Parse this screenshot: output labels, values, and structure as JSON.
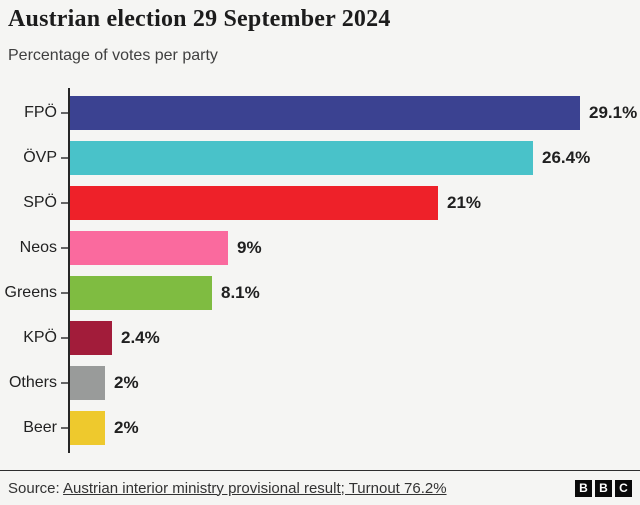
{
  "header": {
    "title": "Austrian election 29 September 2024",
    "subtitle": "Percentage of votes per party"
  },
  "chart_data": {
    "type": "bar",
    "orientation": "horizontal",
    "title": "Austrian election 29 September 2024",
    "subtitle": "Percentage of votes per party",
    "categories": [
      "FPÖ",
      "ÖVP",
      "SPÖ",
      "Neos",
      "Greens",
      "KPÖ",
      "Others",
      "Beer"
    ],
    "values": [
      29.1,
      26.4,
      21,
      9,
      8.1,
      2.4,
      2,
      2
    ],
    "value_labels": [
      "29.1%",
      "26.4%",
      "21%",
      "9%",
      "8.1%",
      "2.4%",
      "2%",
      "2%"
    ],
    "bar_colors": [
      "#3b4291",
      "#49c2c9",
      "#ee2129",
      "#fa6a9e",
      "#7fbc41",
      "#a21c3a",
      "#999b9a",
      "#eec92d"
    ],
    "xlim": [
      0,
      29.1
    ],
    "grid": false,
    "legend": "none",
    "axis_color": "#262626",
    "background_color": "#f5f5f3"
  },
  "footer": {
    "source_prefix": "Source: ",
    "source_link": "Austrian interior ministry provisional result; Turnout 76.2%",
    "logo_letters": [
      "B",
      "B",
      "C"
    ]
  }
}
